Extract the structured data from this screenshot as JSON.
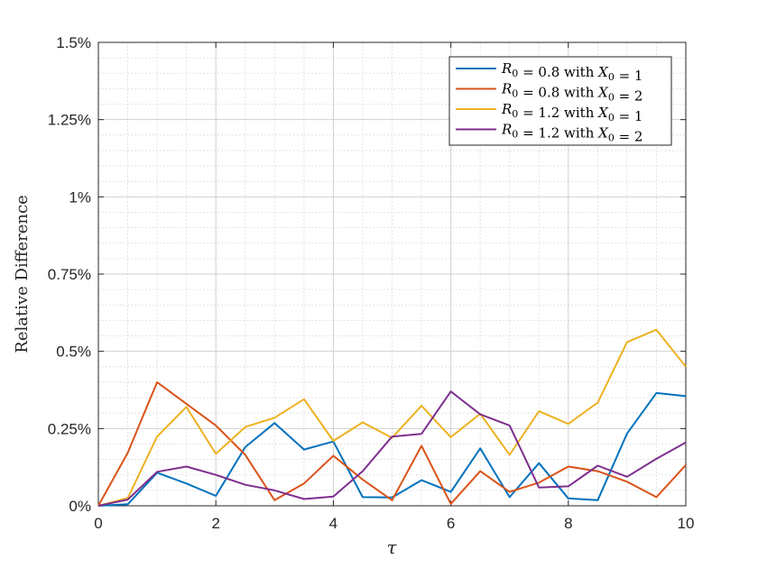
{
  "chart_data": {
    "type": "line",
    "title": "",
    "xlabel": "τ",
    "ylabel": "Relative Difference",
    "xlim": [
      0,
      10
    ],
    "ylim": [
      0,
      1.5
    ],
    "x_ticks": [
      0,
      2,
      4,
      6,
      8,
      10
    ],
    "x_tick_labels": [
      "0",
      "2",
      "4",
      "6",
      "8",
      "10"
    ],
    "y_ticks": [
      0,
      0.25,
      0.5,
      0.75,
      1,
      1.25,
      1.5
    ],
    "y_tick_labels": [
      "0%",
      "0.25%",
      "0.5%",
      "0.75%",
      "1%",
      "1.25%",
      "1.5%"
    ],
    "grid": true,
    "minor_grid": true,
    "legend_position": "top-right",
    "x": [
      0,
      0.5,
      1,
      1.5,
      2,
      2.5,
      3,
      3.5,
      4,
      4.5,
      5,
      5.5,
      6,
      6.5,
      7,
      7.5,
      8,
      8.5,
      9,
      9.5,
      10
    ],
    "series": [
      {
        "name": "R0 = 0.8 with X0 = 1",
        "label_parts": [
          "R",
          "0",
          " = 0.8 with ",
          "X",
          "0",
          " = 1"
        ],
        "color": "#0072BD",
        "values": [
          0.0,
          0.005,
          0.107,
          0.072,
          0.032,
          0.19,
          0.268,
          0.182,
          0.208,
          0.028,
          0.027,
          0.083,
          0.045,
          0.186,
          0.028,
          0.138,
          0.024,
          0.018,
          0.234,
          0.365,
          0.355
        ]
      },
      {
        "name": "R0 = 0.8 with X0 = 2",
        "label_parts": [
          "R",
          "0",
          " = 0.8 with ",
          "X",
          "0",
          " = 2"
        ],
        "color": "#D95319",
        "values": [
          0.0,
          0.172,
          0.4,
          0.33,
          0.26,
          0.165,
          0.018,
          0.072,
          0.162,
          0.085,
          0.018,
          0.194,
          0.006,
          0.112,
          0.045,
          0.075,
          0.127,
          0.112,
          0.078,
          0.028,
          0.132
        ]
      },
      {
        "name": "R0 = 1.2 with X0 = 1",
        "label_parts": [
          "R",
          "0",
          " = 1.2 with ",
          "X",
          "0",
          " = 1"
        ],
        "color": "#EDB120",
        "values": [
          0.0,
          0.025,
          0.224,
          0.32,
          0.168,
          0.255,
          0.285,
          0.345,
          0.21,
          0.27,
          0.22,
          0.324,
          0.222,
          0.298,
          0.165,
          0.306,
          0.265,
          0.334,
          0.53,
          0.57,
          0.45
        ]
      },
      {
        "name": "R0 = 1.2 with X0 = 2",
        "label_parts": [
          "R",
          "0",
          " = 1.2 with ",
          "X",
          "0",
          " = 2"
        ],
        "color": "#7E2F8E",
        "values": [
          0.0,
          0.02,
          0.11,
          0.127,
          0.1,
          0.068,
          0.05,
          0.022,
          0.03,
          0.112,
          0.224,
          0.233,
          0.37,
          0.296,
          0.26,
          0.059,
          0.063,
          0.13,
          0.094,
          0.152,
          0.205
        ]
      }
    ]
  }
}
